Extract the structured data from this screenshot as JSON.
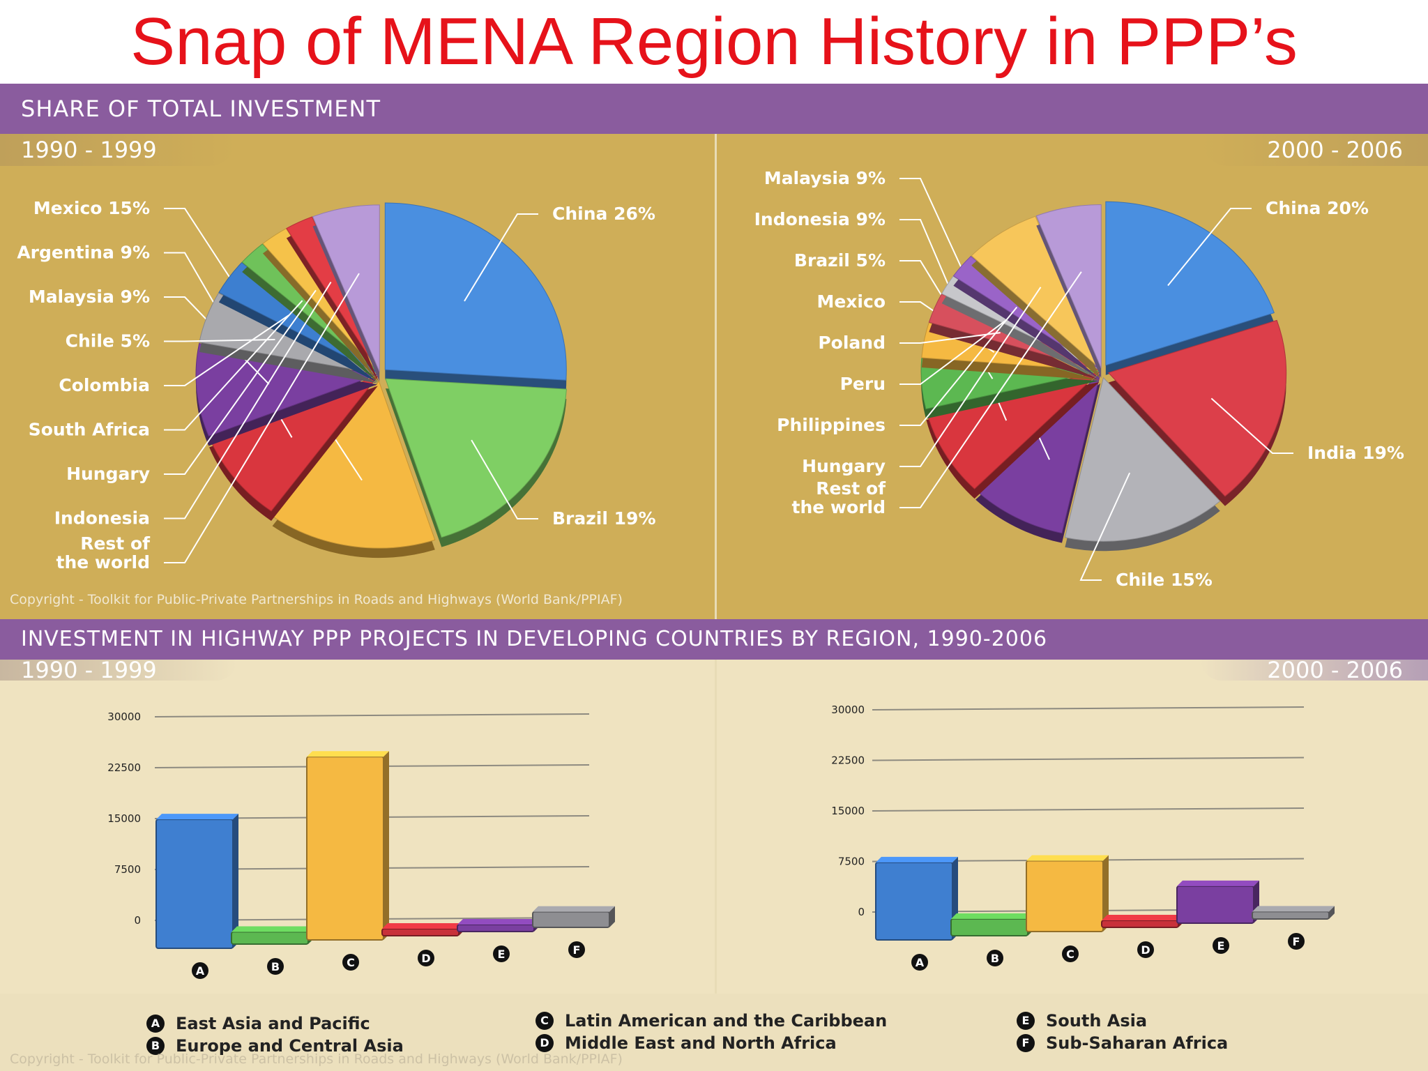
{
  "title": "Snap of MENA Region History in PPP’s",
  "section1": {
    "heading": "SHARE OF TOTAL INVESTMENT",
    "period_left": "1990 - 1999",
    "period_right": "2000 - 2006"
  },
  "section2": {
    "heading": "INVESTMENT IN HIGHWAY PPP PROJECTS IN DEVELOPING COUNTRIES BY REGION, 1990-2006",
    "period_left": "1990 - 1999",
    "period_right": "2000 - 2006"
  },
  "copyright": "Copyright - Toolkit for Public-Private Partnerships in Roads and Highways (World Bank/PPIAF)",
  "legend": [
    {
      "key": "A",
      "label": "East Asia and Pacific"
    },
    {
      "key": "B",
      "label": "Europe and Central Asia"
    },
    {
      "key": "C",
      "label": "Latin American and the Caribbean"
    },
    {
      "key": "D",
      "label": "Middle East and North Africa"
    },
    {
      "key": "E",
      "label": "South Asia"
    },
    {
      "key": "F",
      "label": "Sub-Saharan Africa"
    }
  ],
  "chart_data": [
    {
      "type": "pie",
      "period": "1990 - 1999",
      "slices": [
        {
          "label": "China 26%",
          "value": 26,
          "color": "#4a8fe0",
          "side": "right"
        },
        {
          "label": "Brazil 19%",
          "value": 19,
          "color": "#7fcf64",
          "side": "right"
        },
        {
          "label": "Mexico 15%",
          "value": 15,
          "color": "#f5b942",
          "side": "left"
        },
        {
          "label": "Argentina 9%",
          "value": 9,
          "color": "#d9363e",
          "side": "left"
        },
        {
          "label": "Malaysia 9%",
          "value": 9,
          "color": "#7a3fa0",
          "side": "left"
        },
        {
          "label": "Chile 5%",
          "value": 5,
          "color": "#a9a9ad",
          "side": "left"
        },
        {
          "label": "Colombia",
          "value": 3.5,
          "color": "#3d7fd0",
          "side": "left"
        },
        {
          "label": "South Africa",
          "value": 2.5,
          "color": "#6fc25a",
          "side": "left"
        },
        {
          "label": "Hungary",
          "value": 2.5,
          "color": "#f5c24a",
          "side": "left"
        },
        {
          "label": "Indonesia",
          "value": 2.5,
          "color": "#e33d45",
          "side": "left"
        },
        {
          "label": "Rest of the world",
          "value": 6,
          "color": "#b89ad8",
          "side": "left"
        }
      ]
    },
    {
      "type": "pie",
      "period": "2000 - 2006",
      "slices": [
        {
          "label": "China 20%",
          "value": 20,
          "color": "#4a8fe0",
          "side": "right"
        },
        {
          "label": "India 19%",
          "value": 19,
          "color": "#dc3f4a",
          "side": "right"
        },
        {
          "label": "Chile 15%",
          "value": 15,
          "color": "#b3b3b8",
          "side": "right"
        },
        {
          "label": "Malaysia 9%",
          "value": 9,
          "color": "#7a3fa0",
          "side": "left"
        },
        {
          "label": "Indonesia 9%",
          "value": 9,
          "color": "#d9363e",
          "side": "left"
        },
        {
          "label": "Brazil 5%",
          "value": 5,
          "color": "#5cb851",
          "side": "left"
        },
        {
          "label": "Mexico",
          "value": 3.5,
          "color": "#f5b942",
          "side": "left"
        },
        {
          "label": "Poland",
          "value": 3,
          "color": "#d7505d",
          "side": "left"
        },
        {
          "label": "Peru",
          "value": 2,
          "color": "#c7c7cb",
          "side": "left"
        },
        {
          "label": "Philippines",
          "value": 2.5,
          "color": "#9a64c8",
          "side": "left"
        },
        {
          "label": "Hungary",
          "value": 7,
          "color": "#f7c65a",
          "side": "left"
        },
        {
          "label": "Rest of the world",
          "value": 6,
          "color": "#b89ad8",
          "side": "left"
        }
      ]
    },
    {
      "type": "bar",
      "period": "1990 - 1999",
      "categories": [
        "A",
        "B",
        "C",
        "D",
        "E",
        "F"
      ],
      "values": [
        19000,
        1800,
        27000,
        500,
        1000,
        2300
      ],
      "colors": [
        "#3f7fd0",
        "#5cb851",
        "#f5b942",
        "#c8313a",
        "#7a3fa0",
        "#8e8e92"
      ],
      "ticks": [
        0,
        7500,
        15000,
        22500,
        30000
      ],
      "ylim": [
        0,
        30000
      ]
    },
    {
      "type": "bar",
      "period": "2000 - 2006",
      "categories": [
        "A",
        "B",
        "C",
        "D",
        "E",
        "F"
      ],
      "values": [
        11500,
        2500,
        10500,
        500,
        5500,
        1100
      ],
      "colors": [
        "#3f7fd0",
        "#5cb851",
        "#f5b942",
        "#c8313a",
        "#7a3fa0",
        "#8e8e92"
      ],
      "ticks": [
        0,
        7500,
        15000,
        22500,
        30000
      ],
      "ylim": [
        0,
        30000
      ]
    }
  ]
}
